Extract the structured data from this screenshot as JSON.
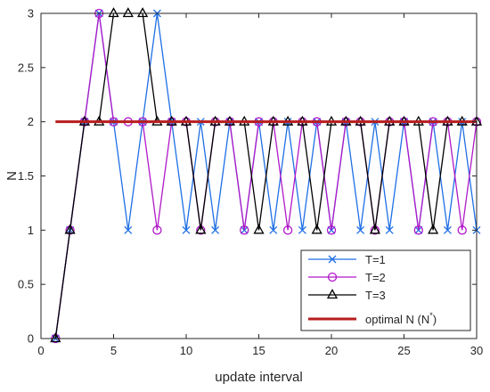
{
  "chart_data": {
    "type": "line",
    "title": "",
    "xlabel": "update interval",
    "ylabel": "N",
    "xlim": [
      0,
      30
    ],
    "ylim": [
      0,
      3
    ],
    "xticks": [
      0,
      5,
      10,
      15,
      20,
      25,
      30
    ],
    "xtick_labels": [
      "0",
      "5",
      "10",
      "15",
      "20",
      "25",
      "30"
    ],
    "yticks": [
      0,
      0.5,
      1,
      1.5,
      2,
      2.5,
      3
    ],
    "ytick_labels": [
      "0",
      "0.5",
      "1",
      "1.5",
      "2",
      "2.5",
      "3"
    ],
    "grid": false,
    "legend_position": "bottom-right",
    "x": [
      1,
      2,
      3,
      4,
      5,
      6,
      7,
      8,
      9,
      10,
      11,
      12,
      13,
      14,
      15,
      16,
      17,
      18,
      19,
      20,
      21,
      22,
      23,
      24,
      25,
      26,
      27,
      28,
      29,
      30
    ],
    "series": [
      {
        "name": "T=1",
        "color": "#1f6fe5",
        "marker": "x",
        "values": [
          0,
          1,
          2,
          3,
          2,
          1,
          2,
          3,
          2,
          1,
          2,
          1,
          2,
          1,
          2,
          1,
          2,
          1,
          2,
          1,
          2,
          1,
          2,
          1,
          2,
          1,
          2,
          1,
          2,
          1
        ]
      },
      {
        "name": "T=2",
        "color": "#b019c8",
        "marker": "circle",
        "values": [
          0,
          1,
          2,
          3,
          2,
          2,
          2,
          1,
          2,
          2,
          1,
          2,
          2,
          1,
          2,
          2,
          1,
          2,
          2,
          1,
          2,
          2,
          1,
          2,
          2,
          1,
          2,
          2,
          1,
          2
        ]
      },
      {
        "name": "T=3",
        "color": "#000000",
        "marker": "triangle",
        "values": [
          0,
          1,
          2,
          2,
          3,
          3,
          3,
          2,
          2,
          2,
          1,
          2,
          2,
          2,
          1,
          2,
          2,
          2,
          1,
          2,
          2,
          2,
          1,
          2,
          2,
          2,
          1,
          2,
          2,
          2
        ]
      }
    ],
    "reference_line": {
      "name": "optimal N (N*)",
      "name_main": "optimal N (N",
      "name_sup": "*",
      "name_close": ")",
      "color": "#b81d1d",
      "value": 2,
      "x_from": 1,
      "x_to": 30
    }
  }
}
